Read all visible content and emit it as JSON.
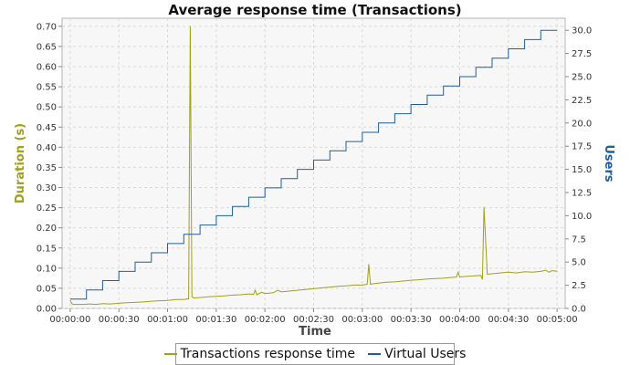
{
  "chart_data": {
    "type": "line",
    "title": "Average response time (Transactions)",
    "xlabel": "Time",
    "ylabel": "Duration (s)",
    "y2label": "Users",
    "xlim": [
      -5,
      305
    ],
    "ylim": [
      0,
      0.72
    ],
    "y2lim": [
      0,
      31.3
    ],
    "x_ticks": [
      0,
      30,
      60,
      90,
      120,
      150,
      180,
      210,
      240,
      270,
      300
    ],
    "x_tick_labels": [
      "00:00:00",
      "00:00:30",
      "00:01:00",
      "00:01:30",
      "00:02:00",
      "00:02:30",
      "00:03:00",
      "00:03:30",
      "00:04:00",
      "00:04:30",
      "00:05:00"
    ],
    "y_ticks": [
      0.0,
      0.05,
      0.1,
      0.15,
      0.2,
      0.25,
      0.3,
      0.35,
      0.4,
      0.45,
      0.5,
      0.55,
      0.6,
      0.65,
      0.7
    ],
    "y_tick_labels": [
      "0.00",
      "0.05",
      "0.10",
      "0.15",
      "0.20",
      "0.25",
      "0.30",
      "0.35",
      "0.40",
      "0.45",
      "0.50",
      "0.55",
      "0.60",
      "0.65",
      "0.70"
    ],
    "y2_ticks": [
      0,
      2.5,
      5,
      7.5,
      10,
      12.5,
      15,
      17.5,
      20,
      22.5,
      25,
      27.5,
      30
    ],
    "y2_tick_labels": [
      "0.0",
      "2.5",
      "5.0",
      "7.5",
      "10.0",
      "12.5",
      "15.0",
      "17.5",
      "20.0",
      "22.5",
      "25.0",
      "27.5",
      "30.0"
    ],
    "grid": true,
    "legend_position": "bottom-center",
    "series": [
      {
        "name": "Transactions response time",
        "color": "#a0a01a",
        "axis": "left",
        "x": [
          0,
          1,
          2,
          4,
          8,
          12,
          16,
          20,
          25,
          30,
          35,
          40,
          45,
          50,
          55,
          60,
          65,
          70,
          73,
          74,
          75,
          76,
          80,
          85,
          90,
          95,
          100,
          105,
          110,
          113,
          114,
          115,
          118,
          120,
          125,
          128,
          130,
          135,
          140,
          145,
          150,
          155,
          160,
          165,
          170,
          175,
          180,
          183,
          184,
          185,
          188,
          190,
          195,
          200,
          205,
          210,
          215,
          220,
          225,
          230,
          235,
          238,
          239,
          240,
          245,
          250,
          253,
          254,
          255,
          257,
          260,
          265,
          270,
          275,
          280,
          285,
          290,
          293,
          295,
          297,
          300
        ],
        "y": [
          0.02,
          0.012,
          0.01,
          0.01,
          0.01,
          0.011,
          0.01,
          0.012,
          0.011,
          0.013,
          0.014,
          0.015,
          0.016,
          0.018,
          0.019,
          0.02,
          0.022,
          0.022,
          0.024,
          0.7,
          0.03,
          0.026,
          0.027,
          0.029,
          0.03,
          0.031,
          0.033,
          0.034,
          0.036,
          0.035,
          0.045,
          0.034,
          0.04,
          0.037,
          0.039,
          0.045,
          0.041,
          0.043,
          0.045,
          0.047,
          0.049,
          0.051,
          0.053,
          0.055,
          0.056,
          0.058,
          0.058,
          0.06,
          0.11,
          0.06,
          0.062,
          0.063,
          0.065,
          0.066,
          0.068,
          0.07,
          0.071,
          0.073,
          0.074,
          0.075,
          0.077,
          0.078,
          0.09,
          0.078,
          0.08,
          0.081,
          0.082,
          0.072,
          0.252,
          0.085,
          0.086,
          0.088,
          0.09,
          0.088,
          0.091,
          0.09,
          0.092,
          0.095,
          0.09,
          0.094,
          0.092
        ]
      },
      {
        "name": "Virtual Users",
        "color": "#1f5fa0",
        "axis": "right",
        "step": true,
        "x": [
          0,
          10,
          20,
          30,
          40,
          50,
          60,
          70,
          80,
          90,
          100,
          110,
          120,
          130,
          140,
          150,
          160,
          170,
          180,
          190,
          200,
          210,
          220,
          230,
          240,
          250,
          260,
          270,
          280,
          290,
          300
        ],
        "y": [
          1,
          2,
          3,
          4,
          5,
          6,
          7,
          8,
          9,
          10,
          11,
          12,
          13,
          14,
          15,
          16,
          17,
          18,
          19,
          20,
          21,
          22,
          23,
          24,
          25,
          26,
          27,
          28,
          29,
          30,
          30
        ]
      }
    ]
  }
}
